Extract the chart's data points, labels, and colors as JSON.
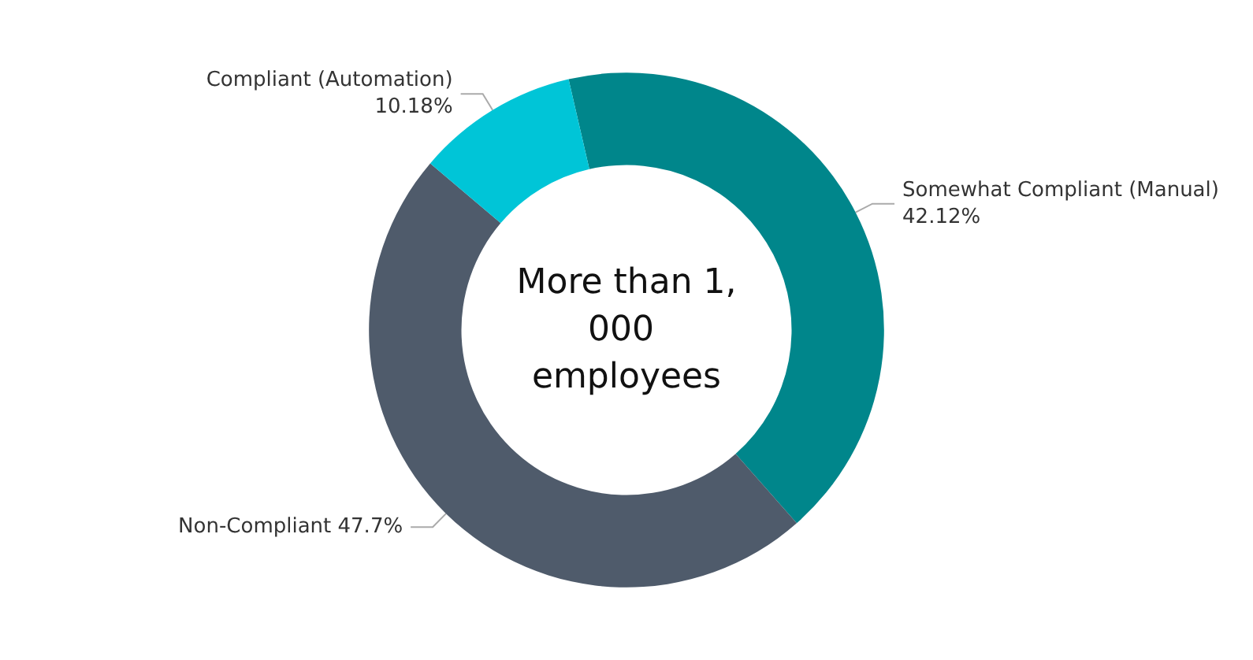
{
  "chart_data": {
    "type": "donut",
    "title": "More than 1,000 employees",
    "categories": [
      "Somewhat Compliant (Manual)",
      "Non-Compliant",
      "Compliant (Automation)"
    ],
    "values": [
      42.12,
      47.7,
      10.18
    ],
    "value_labels": [
      "42.12%",
      "47.7%",
      "10.18%"
    ],
    "colors": [
      "#00868b",
      "#4f5b6b",
      "#00c5d7"
    ],
    "legend": false
  }
}
